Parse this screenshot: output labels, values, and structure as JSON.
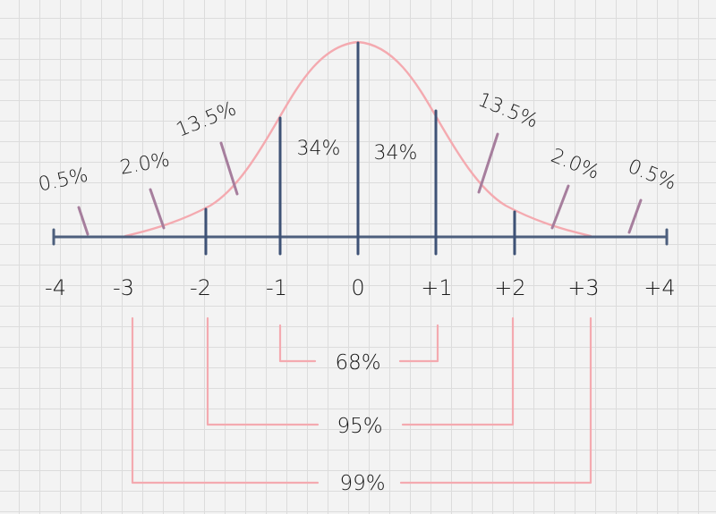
{
  "axis": {
    "ticks": [
      "-4",
      "-3",
      "-2",
      "-1",
      "0",
      "+1",
      "+2",
      "+3",
      "+4"
    ]
  },
  "regions": [
    {
      "label": "0.5%",
      "side": "left"
    },
    {
      "label": "2.0%",
      "side": "left"
    },
    {
      "label": "13.5%",
      "side": "left"
    },
    {
      "label": "34%",
      "side": "left"
    },
    {
      "label": "34%",
      "side": "right"
    },
    {
      "label": "13.5%",
      "side": "right"
    },
    {
      "label": "2.0%",
      "side": "right"
    },
    {
      "label": "0.5%",
      "side": "right"
    }
  ],
  "spans": [
    {
      "label": "68%",
      "from": "-1",
      "to": "+1"
    },
    {
      "label": "95%",
      "from": "-2",
      "to": "+2"
    },
    {
      "label": "99%",
      "from": "-3",
      "to": "+3"
    }
  ],
  "colors": {
    "curve": "#f4aab0",
    "axis": "#4d5f7d",
    "pointer": "#a67e9d",
    "text": "#1a1a1a",
    "grid": "#dcdcdc"
  }
}
